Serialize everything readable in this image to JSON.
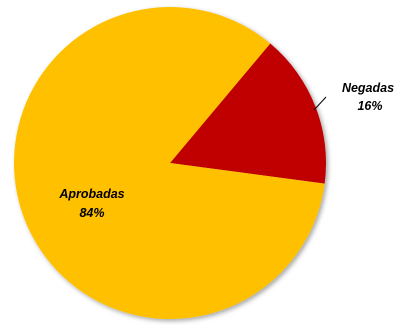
{
  "chart_data": {
    "type": "pie",
    "title": "",
    "slices": [
      {
        "label": "Negadas",
        "value": 16,
        "value_label": "16%",
        "color": "#C00000"
      },
      {
        "label": "Aprobadas",
        "value": 84,
        "value_label": "84%",
        "color": "#FFC000"
      }
    ],
    "legend": "none",
    "labels_outside": [
      "Negadas"
    ]
  }
}
